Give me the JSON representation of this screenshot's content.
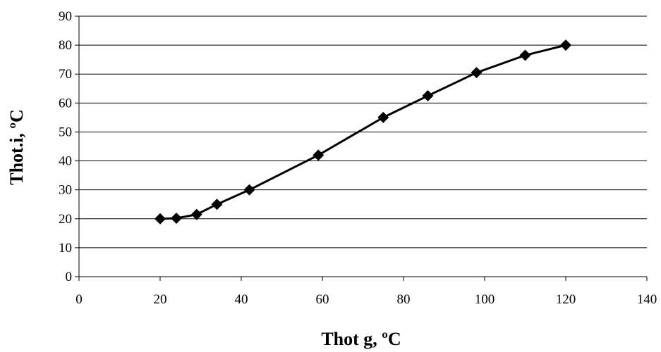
{
  "chart_data": {
    "type": "line",
    "title": "",
    "xlabel": "Thot g, ºC",
    "ylabel": "Thot.i, ºC",
    "xlim": [
      0,
      140
    ],
    "ylim": [
      0,
      90
    ],
    "xticks": [
      0,
      20,
      40,
      60,
      80,
      100,
      120,
      140
    ],
    "yticks": [
      0,
      10,
      20,
      30,
      40,
      50,
      60,
      70,
      80,
      90
    ],
    "grid": "horizontal",
    "legend": "none",
    "series": [
      {
        "color": "#000000",
        "marker": "diamond",
        "x": [
          20,
          24,
          29,
          34,
          42,
          59,
          75,
          86,
          98,
          110,
          120
        ],
        "y": [
          20,
          20.2,
          21.5,
          25,
          30,
          42,
          55,
          62.5,
          70.5,
          76.5,
          80
        ]
      }
    ]
  }
}
